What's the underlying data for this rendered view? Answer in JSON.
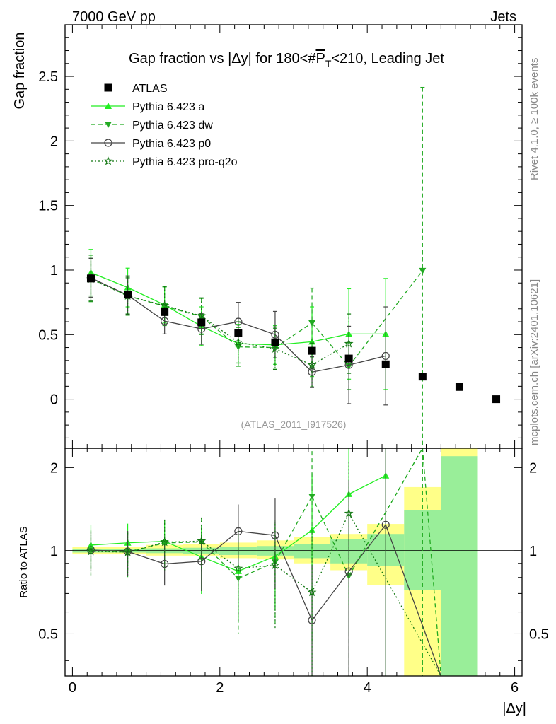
{
  "header": {
    "left_label": "7000 GeV pp",
    "right_label": "Jets"
  },
  "side_labels": {
    "rivet": "Rivet 4.1.0, ≥ 100k events",
    "source": "mcplots.cern.ch [arXiv:2401.10621]"
  },
  "chart_data": {
    "type": "scatter",
    "title_prefix": "Gap fraction vs |Δy| for 180<#",
    "title_pt": "P",
    "title_sub": "T",
    "title_suffix": "<210, Leading Jet",
    "ylabel": "Gap fraction",
    "xlabel": "|Δy|",
    "ratio_ylabel": "Ratio to ATLAS",
    "watermark": "(ATLAS_2011_I917526)",
    "xlim": [
      -0.1,
      6.1
    ],
    "ylim": [
      -0.38,
      2.9
    ],
    "ratio_ylim": [
      0.352,
      2.35
    ],
    "x_ticks": [
      "0",
      "2",
      "4",
      "6"
    ],
    "y_ticks": [
      "0",
      "0.5",
      "1",
      "1.5",
      "2",
      "2.5"
    ],
    "ratio_ticks": [
      "0.5",
      "1",
      "2"
    ],
    "x": [
      0.25,
      0.75,
      1.25,
      1.75,
      2.25,
      2.75,
      3.25,
      3.75,
      4.25,
      4.75,
      5.25,
      5.75
    ],
    "data": {
      "name": "ATLAS",
      "color": "#000000",
      "values": [
        0.935,
        0.81,
        0.675,
        0.595,
        0.51,
        0.44,
        0.375,
        0.315,
        0.27,
        0.175,
        0.095,
        0.0
      ]
    },
    "series": [
      {
        "name": "Pythia 6.423 a",
        "color": "#22ee22",
        "dash": "",
        "marker": "triangle-up",
        "values": [
          0.98,
          0.865,
          0.73,
          0.565,
          0.43,
          0.42,
          0.445,
          0.505,
          0.505
        ],
        "errors": [
          0.18,
          0.15,
          0.14,
          0.15,
          0.15,
          0.15,
          0.27,
          0.35,
          0.43
        ]
      },
      {
        "name": "Pythia 6.423 dw",
        "color": "#22aa22",
        "dash": "6,4",
        "marker": "triangle-down",
        "values": [
          0.935,
          0.8,
          0.72,
          0.64,
          0.405,
          0.4,
          0.59,
          0.255,
          null,
          0.995
        ],
        "errors": [
          0.18,
          0.15,
          0.15,
          0.14,
          0.15,
          0.16,
          0.27,
          0.18,
          null,
          1.42
        ]
      },
      {
        "name": "Pythia 6.423 p0",
        "color": "#444444",
        "dash": "",
        "marker": "circle-open",
        "values": [
          0.94,
          0.805,
          0.605,
          0.545,
          0.6,
          0.5,
          0.21,
          0.265,
          0.335
        ],
        "errors": [
          0.15,
          0.15,
          0.1,
          0.12,
          0.15,
          0.18,
          0.12,
          0.3,
          0.38
        ]
      },
      {
        "name": "Pythia 6.423 pro-q2o",
        "color": "#117711",
        "dash": "2,3",
        "marker": "star",
        "values": [
          0.93,
          0.8,
          0.725,
          0.645,
          0.44,
          0.39,
          0.265,
          0.43
        ],
        "errors": [
          0.17,
          0.14,
          0.15,
          0.14,
          0.16,
          0.16,
          0.17,
          0.23
        ]
      }
    ],
    "ratio_tail": [
      {
        "name": "Pythia 6.423 dw",
        "points": [
          [
            4.75,
            2.35
          ],
          [
            5.0,
            0.352
          ]
        ]
      },
      {
        "name": "Pythia 6.423 p0",
        "points": [
          [
            5.0,
            0.352
          ]
        ]
      },
      {
        "name": "Pythia 6.423 pro-q2o",
        "points": [
          [
            5.0,
            0.352
          ]
        ]
      }
    ],
    "bands_yellow": [
      [
        0.0,
        0.5,
        0.97,
        1.03
      ],
      [
        0.5,
        1.0,
        0.97,
        1.03
      ],
      [
        1.0,
        1.5,
        0.96,
        1.05
      ],
      [
        1.5,
        2.0,
        0.96,
        1.06
      ],
      [
        2.0,
        2.5,
        0.94,
        1.07
      ],
      [
        2.5,
        3.0,
        0.93,
        1.09
      ],
      [
        3.0,
        3.5,
        0.9,
        1.12
      ],
      [
        3.5,
        4.0,
        0.85,
        1.15
      ],
      [
        4.0,
        4.5,
        0.75,
        1.25
      ],
      [
        4.5,
        5.0,
        0.35,
        1.7
      ],
      [
        5.0,
        5.5,
        0.35,
        2.35
      ]
    ],
    "bands_green": [
      [
        0.0,
        0.5,
        0.985,
        1.015
      ],
      [
        0.5,
        1.0,
        0.985,
        1.015
      ],
      [
        1.0,
        1.5,
        0.98,
        1.02
      ],
      [
        1.5,
        2.0,
        0.975,
        1.025
      ],
      [
        2.0,
        2.5,
        0.965,
        1.035
      ],
      [
        2.5,
        3.0,
        0.96,
        1.04
      ],
      [
        3.0,
        3.5,
        0.94,
        1.06
      ],
      [
        3.5,
        4.0,
        0.9,
        1.1
      ],
      [
        4.0,
        4.5,
        0.88,
        1.15
      ],
      [
        4.5,
        5.0,
        0.72,
        1.4
      ],
      [
        5.0,
        5.5,
        0.35,
        2.2
      ]
    ]
  }
}
